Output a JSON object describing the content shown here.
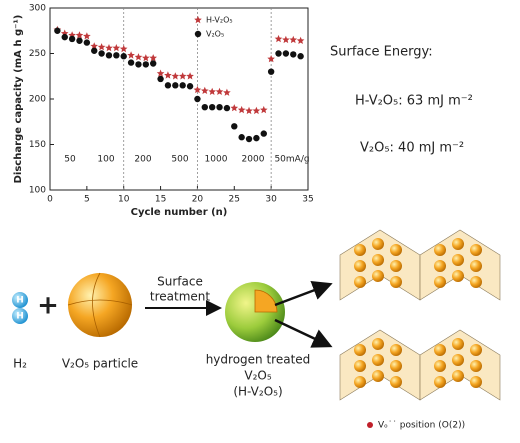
{
  "chart_data": {
    "type": "scatter",
    "x_label": "Cycle number (n)",
    "y_label": "Discharge capacity (mA h g⁻¹)",
    "x": [
      1,
      2,
      3,
      4,
      5,
      6,
      7,
      8,
      9,
      10,
      11,
      12,
      13,
      14,
      15,
      16,
      17,
      18,
      19,
      20,
      21,
      22,
      23,
      24,
      25,
      26,
      27,
      28,
      29,
      30,
      31,
      32,
      33,
      34
    ],
    "series": [
      {
        "name": "H-V₂O₅",
        "color": "#c0393b",
        "marker": "star",
        "values": [
          276,
          272,
          270,
          270,
          269,
          258,
          257,
          256,
          256,
          255,
          248,
          246,
          245,
          245,
          228,
          226,
          225,
          225,
          225,
          210,
          209,
          208,
          208,
          207,
          190,
          188,
          187,
          187,
          188,
          244,
          266,
          265,
          265,
          264
        ]
      },
      {
        "name": "V₂O₅",
        "color": "#111111",
        "marker": "circle",
        "values": [
          275,
          268,
          266,
          264,
          262,
          253,
          250,
          248,
          248,
          247,
          240,
          238,
          238,
          239,
          222,
          215,
          215,
          215,
          214,
          200,
          191,
          191,
          191,
          190,
          170,
          158,
          156,
          157,
          162,
          230,
          250,
          250,
          249,
          247
        ]
      }
    ],
    "xlim": [
      0,
      35
    ],
    "xticks": [
      0,
      5,
      10,
      15,
      20,
      25,
      30,
      35
    ],
    "ylim": [
      100,
      300
    ],
    "yticks": [
      100,
      150,
      200,
      250,
      300
    ],
    "vlines": [
      10,
      20,
      30
    ],
    "rate_labels": [
      "50",
      "100",
      "200",
      "500",
      "1000",
      "2000",
      "50mA/g"
    ],
    "legend": "upper-right"
  },
  "surface_energy": {
    "title": "Surface Energy:",
    "items": [
      "H-V₂O₅: 63 mJ m⁻²",
      "V₂O₅: 40 mJ m⁻²"
    ]
  },
  "diagram": {
    "h2": "H₂",
    "atom": "H",
    "plus": "+",
    "particle": "V₂O₅ particle",
    "arrow_label": [
      "Surface",
      "treatment"
    ],
    "treated": [
      "hydrogen treated",
      "V₂O₅",
      "(H-V₂O₅)"
    ],
    "vacancy": "Vₒ˙˙ position (O(2))"
  }
}
